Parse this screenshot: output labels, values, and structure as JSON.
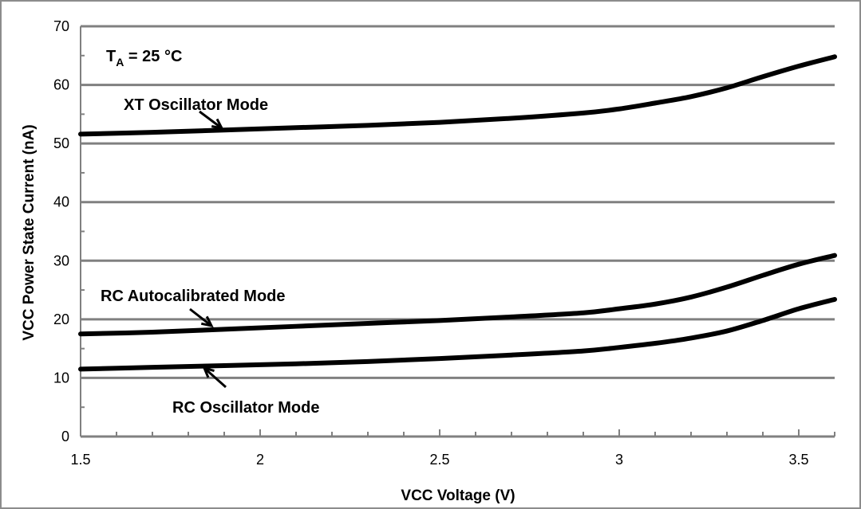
{
  "chart_data": {
    "type": "line",
    "xlabel": "VCC Voltage (V)",
    "ylabel": "VCC Power State Current (nA)",
    "xlim": [
      1.5,
      3.6
    ],
    "ylim": [
      0,
      70
    ],
    "x_ticks": [
      1.5,
      2,
      2.5,
      3,
      3.5
    ],
    "y_ticks": [
      0,
      10,
      20,
      30,
      40,
      50,
      60,
      70
    ],
    "grid": "horizontal",
    "legend": "none",
    "condition_label": {
      "base": "T",
      "sub": "A",
      "rest": " = 25 °C"
    },
    "line_color": "#000000",
    "grid_color": "#808080",
    "series": [
      {
        "name": "XT Oscillator Mode",
        "x": [
          1.5,
          1.7,
          1.9,
          2.1,
          2.3,
          2.5,
          2.7,
          2.9,
          3.0,
          3.1,
          3.2,
          3.3,
          3.4,
          3.5,
          3.6
        ],
        "y": [
          51.6,
          51.9,
          52.3,
          52.7,
          53.1,
          53.6,
          54.3,
          55.2,
          55.9,
          56.9,
          58.0,
          59.5,
          61.4,
          63.2,
          64.8
        ]
      },
      {
        "name": "RC Autocalibrated Mode",
        "x": [
          1.5,
          1.7,
          1.9,
          2.1,
          2.3,
          2.5,
          2.7,
          2.9,
          3.0,
          3.1,
          3.2,
          3.3,
          3.4,
          3.5,
          3.6
        ],
        "y": [
          17.5,
          17.8,
          18.3,
          18.8,
          19.3,
          19.8,
          20.4,
          21.1,
          21.8,
          22.6,
          23.8,
          25.5,
          27.5,
          29.4,
          30.9
        ]
      },
      {
        "name": "RC Oscillator Mode",
        "x": [
          1.5,
          1.7,
          1.9,
          2.1,
          2.3,
          2.5,
          2.7,
          2.9,
          3.0,
          3.1,
          3.2,
          3.3,
          3.4,
          3.5,
          3.6
        ],
        "y": [
          11.5,
          11.8,
          12.1,
          12.4,
          12.8,
          13.3,
          13.9,
          14.6,
          15.2,
          15.9,
          16.8,
          18.0,
          19.8,
          21.8,
          23.4
        ]
      }
    ],
    "annotations": [
      {
        "text": "XT Oscillator Mode",
        "series": 0
      },
      {
        "text": "RC Autocalibrated Mode",
        "series": 1
      },
      {
        "text": "RC Oscillator Mode",
        "series": 2
      }
    ]
  }
}
